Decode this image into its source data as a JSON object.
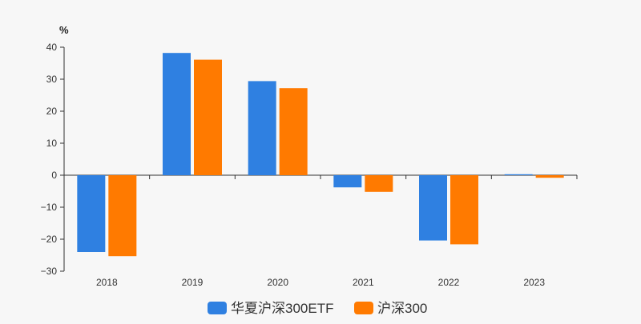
{
  "chart_data": {
    "type": "bar",
    "title": "",
    "unit_label": "%",
    "xlabel": "",
    "ylabel": "%",
    "categories": [
      "2018",
      "2019",
      "2020",
      "2021",
      "2022",
      "2023"
    ],
    "series": [
      {
        "name": "华夏沪深300ETF",
        "color": "#2f80e1",
        "values": [
          -24.0,
          38.2,
          29.4,
          -3.8,
          -20.4,
          0.3
        ]
      },
      {
        "name": "沪深300",
        "color": "#ff7a00",
        "values": [
          -25.3,
          36.1,
          27.2,
          -5.2,
          -21.6,
          -0.8
        ]
      }
    ],
    "ylim": [
      -30,
      40
    ],
    "yticks": [
      -30,
      -20,
      -10,
      0,
      10,
      20,
      30,
      40
    ],
    "ytick_labels": [
      "−30",
      "−20",
      "−10",
      "0",
      "10",
      "20",
      "30",
      "40"
    ],
    "legend_position": "bottom-center",
    "grid": false
  }
}
